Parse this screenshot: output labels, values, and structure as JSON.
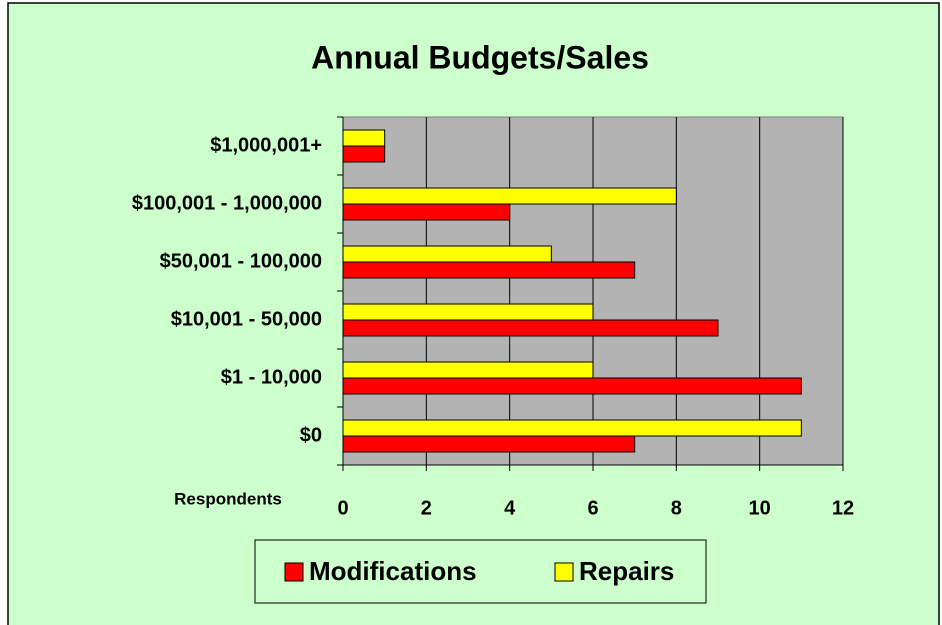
{
  "chart_data": {
    "type": "hbar",
    "title": "Annual Budgets/Sales",
    "xlabel": "Respondents",
    "categories": [
      "$0",
      "$1 - 10,000",
      "$10,001 - 50,000",
      "$50,001 - 100,000",
      "$100,001 - 1,000,000",
      "$1,000,001+"
    ],
    "series": [
      {
        "name": "Modifications",
        "color": "#ff0000",
        "values": [
          7,
          11,
          9,
          7,
          4,
          1
        ]
      },
      {
        "name": "Repairs",
        "color": "#ffff00",
        "values": [
          11,
          6,
          6,
          5,
          8,
          1
        ]
      }
    ],
    "xlim": [
      0,
      12
    ],
    "xticks": [
      0,
      2,
      4,
      6,
      8,
      10,
      12
    ],
    "grid": true
  }
}
